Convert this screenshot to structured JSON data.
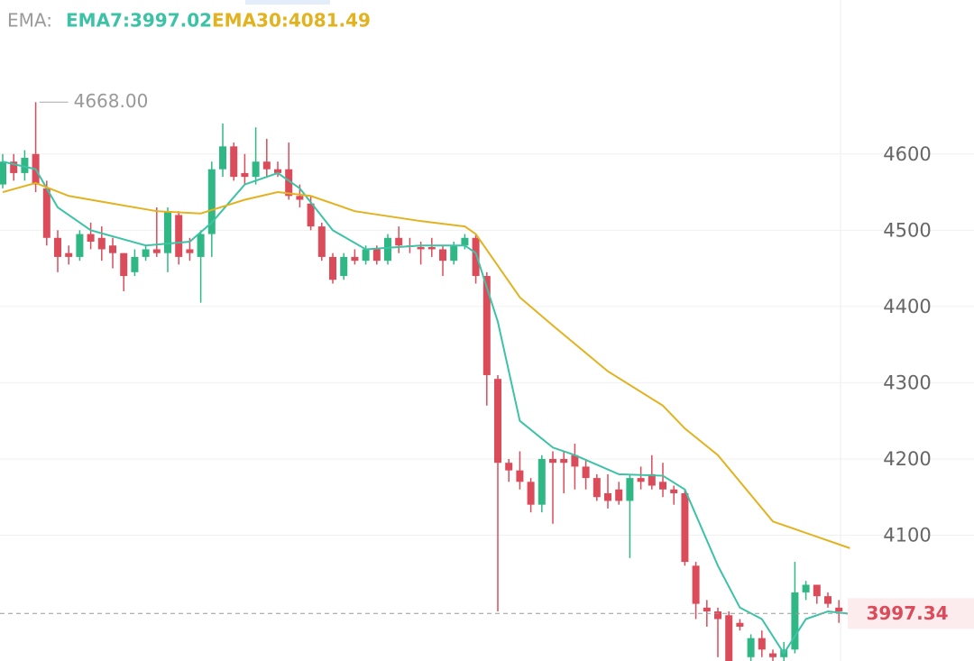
{
  "chart_data": {
    "type": "candlestick",
    "indicator_label": "EMA:",
    "open": [
      4560,
      4590,
      4575,
      4600,
      4555,
      4490,
      4470,
      4465,
      4495,
      4490,
      4480,
      4470,
      4445,
      4465,
      4475,
      4470,
      4520,
      4475,
      4465,
      4495,
      4580,
      4610,
      4575,
      4570,
      4590,
      4580,
      4580,
      4545,
      4535,
      4505,
      4465,
      4440,
      4465,
      4460,
      4475,
      4460,
      4490,
      4480,
      4478,
      4478,
      4475,
      4460,
      4480,
      4490,
      4440,
      4305,
      4195,
      4185,
      4170,
      4140,
      4200,
      4200,
      4205,
      4190,
      4175,
      4155,
      4160,
      4145,
      4175,
      4180,
      4170,
      4160,
      4155,
      4060,
      4005,
      4000,
      3995,
      3985,
      3940,
      3965,
      3945,
      3940,
      3950,
      4025,
      4035,
      4020,
      4005,
      3998
    ],
    "high": [
      4600,
      4600,
      4605,
      4668,
      4565,
      4500,
      4480,
      4500,
      4510,
      4505,
      4490,
      4470,
      4475,
      4480,
      4530,
      4530,
      4525,
      4490,
      4500,
      4590,
      4640,
      4615,
      4600,
      4635,
      4620,
      4590,
      4615,
      4560,
      4545,
      4510,
      4470,
      4470,
      4475,
      4480,
      4480,
      4495,
      4505,
      4490,
      4485,
      4490,
      4480,
      4485,
      4495,
      4495,
      4445,
      4310,
      4200,
      4210,
      4175,
      4205,
      4210,
      4210,
      4220,
      4200,
      4180,
      4180,
      4170,
      4180,
      4190,
      4205,
      4195,
      4165,
      4160,
      4065,
      4015,
      4005,
      4000,
      3990,
      3970,
      3975,
      3950,
      3960,
      4065,
      4040,
      4035,
      4025,
      4015,
      4000
    ],
    "low": [
      4555,
      4565,
      4565,
      4550,
      4480,
      4445,
      4455,
      4460,
      4475,
      4460,
      4450,
      4420,
      4440,
      4460,
      4465,
      4445,
      4455,
      4460,
      4405,
      4465,
      4570,
      4565,
      4560,
      4560,
      4570,
      4570,
      4540,
      4530,
      4500,
      4460,
      4430,
      4435,
      4455,
      4455,
      4455,
      4455,
      4470,
      4470,
      4455,
      4465,
      4440,
      4455,
      4475,
      4430,
      4270,
      4000,
      4170,
      4160,
      4130,
      4130,
      4115,
      4155,
      4160,
      4160,
      4145,
      4135,
      4140,
      4070,
      4160,
      4160,
      4150,
      4140,
      4060,
      3990,
      3980,
      3940,
      3935,
      3975,
      3935,
      3940,
      3935,
      3935,
      3945,
      4015,
      4010,
      4005,
      3985,
      3995
    ],
    "close": [
      4590,
      4575,
      4595,
      4560,
      4490,
      4465,
      4465,
      4495,
      4485,
      4475,
      4470,
      4440,
      4465,
      4475,
      4470,
      4525,
      4465,
      4470,
      4495,
      4580,
      4610,
      4570,
      4570,
      4590,
      4580,
      4575,
      4545,
      4540,
      4505,
      4465,
      4435,
      4465,
      4460,
      4475,
      4460,
      4490,
      4480,
      4478,
      4475,
      4475,
      4460,
      4480,
      4490,
      4440,
      4310,
      4195,
      4185,
      4170,
      4140,
      4200,
      4195,
      4195,
      4190,
      4175,
      4150,
      4145,
      4145,
      4175,
      4170,
      4165,
      4160,
      4155,
      4065,
      4010,
      4000,
      3990,
      3935,
      3980,
      3965,
      3950,
      3940,
      3950,
      4025,
      4035,
      4020,
      4010,
      4000,
      3997.34
    ],
    "up_color": "#2fb886",
    "down_color": "#dc4b5a",
    "series": [
      {
        "name": "EMA7:3997.02",
        "color": "#3cc3a6",
        "x": [
          0,
          3,
          5,
          8,
          13,
          17,
          19,
          22,
          25,
          27,
          30,
          33,
          38,
          42,
          43,
          45,
          47,
          50,
          52,
          56,
          60,
          62,
          65,
          67,
          69,
          71,
          73,
          75,
          77
        ],
        "values": [
          4590,
          4580,
          4530,
          4500,
          4480,
          4485,
          4510,
          4560,
          4575,
          4555,
          4500,
          4475,
          4480,
          4480,
          4470,
          4380,
          4250,
          4215,
          4205,
          4180,
          4178,
          4160,
          4060,
          4005,
          3990,
          3945,
          3990,
          4000,
          3997
        ]
      },
      {
        "name": "EMA30:4081.49",
        "color": "#e3b21f",
        "x": [
          0,
          3,
          6,
          10,
          14,
          18,
          22,
          25,
          28,
          32,
          38,
          42,
          43,
          47,
          50,
          55,
          60,
          62,
          65,
          70,
          72,
          77
        ],
        "values": [
          4550,
          4562,
          4545,
          4535,
          4525,
          4522,
          4540,
          4550,
          4545,
          4525,
          4512,
          4505,
          4495,
          4412,
          4375,
          4315,
          4270,
          4240,
          4205,
          4118,
          4108,
          4083
        ]
      }
    ],
    "high_marker": {
      "value": 4668,
      "label": "4668.00"
    },
    "last_price": 3997.34,
    "ylim": [
      3935,
      4802
    ],
    "yticks": [
      4100,
      4200,
      4300,
      4400,
      4500,
      4600
    ],
    "grid": true
  }
}
